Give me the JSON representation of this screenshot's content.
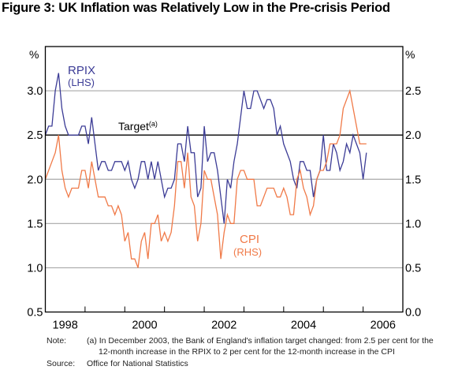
{
  "chart_data": {
    "type": "line",
    "title": "Figure 3: UK Inflation was Relatively Low in the Pre-crisis Period",
    "left_axis": {
      "unit_label": "%",
      "ylim": [
        0.5,
        3.5
      ],
      "ticks": [
        "0.5",
        "1.0",
        "1.5",
        "2.0",
        "2.5",
        "3.0"
      ],
      "tick_values": [
        0.5,
        1.0,
        1.5,
        2.0,
        2.5,
        3.0
      ]
    },
    "right_axis": {
      "unit_label": "%",
      "ylim": [
        0.0,
        3.0
      ],
      "ticks": [
        "0.0",
        "0.5",
        "1.0",
        "1.5",
        "2.0",
        "2.5"
      ],
      "tick_values": [
        0.0,
        0.5,
        1.0,
        1.5,
        2.0,
        2.5
      ]
    },
    "x_axis": {
      "range": [
        1998.0,
        2007.0
      ],
      "labels": [
        "1998",
        "2000",
        "2002",
        "2004",
        "2006"
      ],
      "label_years": [
        1998,
        2000,
        2002,
        2004,
        2006
      ],
      "start": "Jan 1998",
      "frequency": "monthly"
    },
    "grid": true,
    "target_line": {
      "label": "Target",
      "superscript": "(a)",
      "value_lhs": 2.5
    },
    "series": [
      {
        "name": "RPIX",
        "axis_label": "(LHS)",
        "axis": "left",
        "color": "#3c3c96",
        "values": [
          2.5,
          2.6,
          2.6,
          3.0,
          3.2,
          2.8,
          2.6,
          2.5,
          2.5,
          2.5,
          2.5,
          2.6,
          2.6,
          2.4,
          2.7,
          2.4,
          2.1,
          2.2,
          2.2,
          2.1,
          2.1,
          2.2,
          2.2,
          2.2,
          2.1,
          2.2,
          2.0,
          1.9,
          2.0,
          2.2,
          2.2,
          2.0,
          2.2,
          2.0,
          2.2,
          2.0,
          1.8,
          1.9,
          1.9,
          2.0,
          2.4,
          2.4,
          2.2,
          2.6,
          2.3,
          2.3,
          1.8,
          1.9,
          2.6,
          2.2,
          2.3,
          2.3,
          2.1,
          1.8,
          1.5,
          2.0,
          1.9,
          2.2,
          2.4,
          2.7,
          3.0,
          2.8,
          2.8,
          3.0,
          3.0,
          2.9,
          2.8,
          2.9,
          2.9,
          2.8,
          2.5,
          2.6,
          2.4,
          2.3,
          2.2,
          2.0,
          1.9,
          2.2,
          2.2,
          2.1,
          2.1,
          1.8,
          2.0,
          2.1,
          2.5,
          2.1,
          2.1,
          2.4,
          2.3,
          2.1,
          2.2,
          2.4,
          2.3,
          2.5,
          2.4,
          2.3,
          2.0,
          2.3
        ]
      },
      {
        "name": "CPI",
        "axis_label": "(RHS)",
        "axis": "right",
        "color": "#f07a48",
        "values": [
          1.5,
          1.6,
          1.7,
          1.8,
          2.0,
          1.6,
          1.4,
          1.3,
          1.4,
          1.4,
          1.4,
          1.6,
          1.6,
          1.4,
          1.7,
          1.5,
          1.3,
          1.3,
          1.3,
          1.2,
          1.2,
          1.1,
          1.2,
          1.1,
          0.8,
          0.9,
          0.6,
          0.6,
          0.5,
          0.8,
          0.9,
          0.6,
          1.0,
          1.0,
          1.1,
          0.8,
          0.9,
          0.8,
          0.9,
          1.2,
          1.7,
          1.7,
          1.4,
          1.8,
          1.3,
          1.2,
          0.8,
          1.0,
          1.6,
          1.5,
          1.5,
          1.3,
          1.1,
          0.6,
          0.9,
          1.1,
          1.0,
          1.0,
          1.5,
          1.6,
          1.6,
          1.5,
          1.5,
          1.5,
          1.2,
          1.2,
          1.3,
          1.4,
          1.4,
          1.4,
          1.3,
          1.3,
          1.4,
          1.3,
          1.1,
          1.1,
          1.5,
          1.6,
          1.4,
          1.3,
          1.1,
          1.2,
          1.5,
          1.6,
          1.6,
          1.7,
          1.9,
          1.9,
          1.9,
          2.0,
          2.3,
          2.4,
          2.5,
          2.3,
          2.1,
          1.9,
          1.9,
          1.9
        ]
      }
    ],
    "annotations": [
      {
        "text": "RPIX",
        "sub": "(LHS)",
        "series": "RPIX"
      },
      {
        "text": "CPI",
        "sub": "(RHS)",
        "series": "CPI"
      }
    ]
  },
  "footer": {
    "note_label": "Note:",
    "note_line1": "(a) In December 2003, the Bank of England's inflation target changed: from 2.5 per cent for the",
    "note_line2": "12-month increase in the RPIX to 2 per cent for the 12-month increase in the CPI",
    "source_label": "Source:",
    "source_text": "Office for National Statistics"
  }
}
